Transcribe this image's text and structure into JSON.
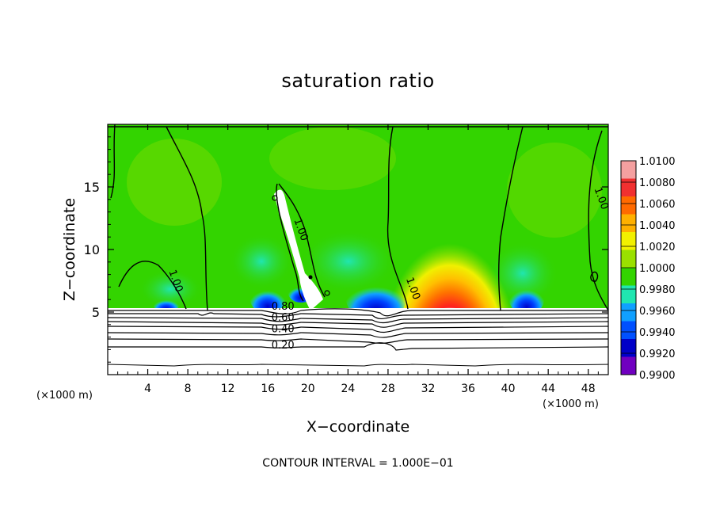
{
  "chart_data": {
    "type": "heatmap",
    "title": "saturation ratio",
    "xlabel": "X−coordinate",
    "ylabel": "Z−coordinate",
    "x_unit_left": "(×1000 m)",
    "x_unit_right": "(×1000 m)",
    "xlim": [
      0,
      50
    ],
    "ylim": [
      0,
      20
    ],
    "xticks": [
      4,
      8,
      12,
      16,
      20,
      24,
      28,
      32,
      36,
      40,
      44,
      48
    ],
    "yticks": [
      5,
      10,
      15
    ],
    "footer": "CONTOUR INTERVAL = 1.000E−01",
    "colorbar": {
      "levels": [
        "1.0100",
        "1.0080",
        "1.0060",
        "1.0040",
        "1.0020",
        "1.0000",
        "0.9980",
        "0.9960",
        "0.9940",
        "0.9920",
        "0.9900"
      ],
      "colors": [
        "#f4a0a0",
        "#f03030",
        "#ff6a00",
        "#ffb000",
        "#f2f000",
        "#9ae000",
        "#33d400",
        "#20e6b0",
        "#10a0ff",
        "#0050ff",
        "#0000c8",
        "#7000c0"
      ]
    },
    "contour_labels": [
      {
        "text": "1.00",
        "x": 19.0,
        "z": 11.5
      },
      {
        "text": "1.00",
        "x": 6.5,
        "z": 7.4
      },
      {
        "text": "1.00",
        "x": 30.2,
        "z": 6.8
      },
      {
        "text": "1.00",
        "x": 49.0,
        "z": 14.0
      },
      {
        "text": "0.80",
        "x": 17.5,
        "z": 5.2
      },
      {
        "text": "0.60",
        "x": 17.5,
        "z": 4.3
      },
      {
        "text": "0.40",
        "x": 17.5,
        "z": 3.4
      },
      {
        "text": "0.20",
        "x": 17.5,
        "z": 2.1
      }
    ],
    "grid": false,
    "legend": "right colorbar"
  }
}
